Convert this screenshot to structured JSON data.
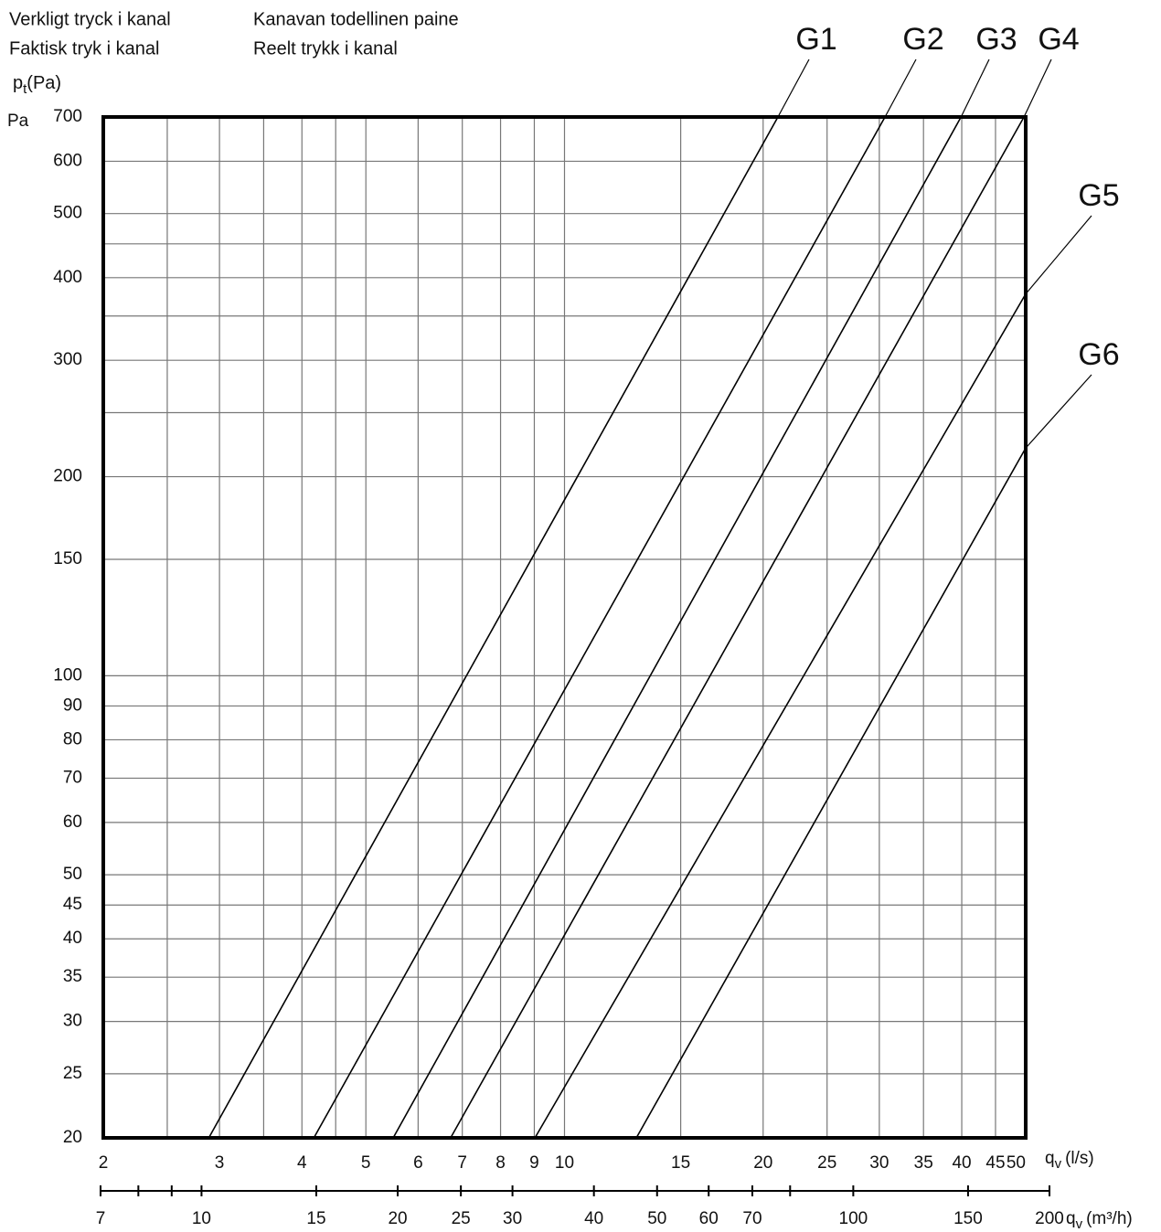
{
  "chart_data": {
    "type": "line",
    "header_texts": [
      "Verkligt tryck i kanal",
      "Faktisk tryk i kanal",
      "Kanavan todellinen paine",
      "Reelt trykk i kanal"
    ],
    "ylabel": {
      "base": "p",
      "sub": "t",
      "unit": "(Pa)"
    },
    "yunit": "Pa",
    "xlabel": {
      "base": "q",
      "sub": "v",
      "unit": "(l/s)"
    },
    "x2label": {
      "base": "q",
      "sub": "v",
      "unit": "(m³/h)"
    },
    "log_x": true,
    "log_y": true,
    "grid": true,
    "xlim": [
      2,
      50
    ],
    "xticks": [
      2,
      3,
      4,
      5,
      6,
      7,
      8,
      9,
      10,
      15,
      20,
      25,
      30,
      35,
      40,
      45,
      50
    ],
    "xminor_grid": [
      2.5,
      3.5,
      4.5
    ],
    "x2lim": [
      7,
      200
    ],
    "x2ticks": [
      7,
      10,
      15,
      20,
      25,
      30,
      40,
      50,
      60,
      70,
      100,
      150,
      200
    ],
    "x2minor_ticks": [
      8,
      9,
      80
    ],
    "ylim": [
      20,
      700
    ],
    "yticks": [
      20,
      25,
      30,
      35,
      40,
      45,
      50,
      60,
      70,
      80,
      90,
      100,
      150,
      200,
      300,
      400,
      500,
      600,
      700
    ],
    "yminor_grid": [
      250,
      350,
      450
    ],
    "series": [
      {
        "name": "G1",
        "color": "#000000",
        "x": [
          2.89,
          21.06
        ],
        "values": [
          20,
          700
        ]
      },
      {
        "name": "G2",
        "color": "#000000",
        "x": [
          4.17,
          30.6
        ],
        "values": [
          20,
          700
        ]
      },
      {
        "name": "G3",
        "color": "#000000",
        "x": [
          5.5,
          39.9
        ],
        "values": [
          20,
          700
        ]
      },
      {
        "name": "G4",
        "color": "#000000",
        "x": [
          6.72,
          49.7
        ],
        "values": [
          20,
          700
        ]
      },
      {
        "name": "G5",
        "color": "#000000",
        "x": [
          9.02,
          50
        ],
        "values": [
          20,
          378
        ]
      },
      {
        "name": "G6",
        "color": "#000000",
        "x": [
          12.85,
          50
        ],
        "values": [
          20,
          221
        ]
      }
    ]
  }
}
